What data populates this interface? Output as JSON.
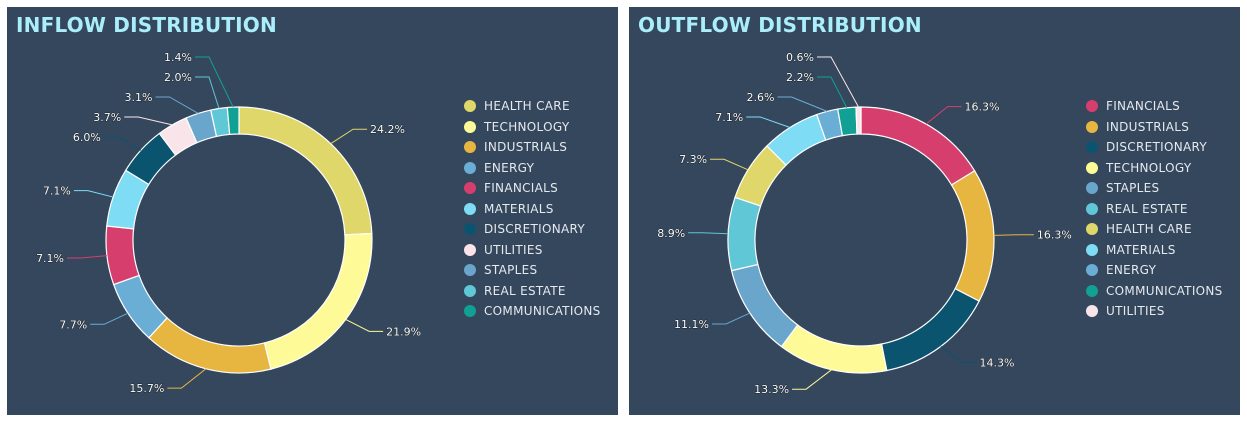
{
  "chart_data": [
    {
      "type": "pie",
      "title": "INFLOW DISTRIBUTION",
      "donut": true,
      "categories": [
        "HEALTH CARE",
        "TECHNOLOGY",
        "INDUSTRIALS",
        "ENERGY",
        "FINANCIALS",
        "MATERIALS",
        "DISCRETIONARY",
        "UTILITIES",
        "STAPLES",
        "REAL ESTATE",
        "COMMUNICATIONS"
      ],
      "values": [
        24.2,
        21.9,
        15.7,
        7.7,
        7.1,
        7.1,
        6.0,
        3.7,
        3.1,
        2.0,
        1.4
      ],
      "labels": [
        "24.2%",
        "21.9%",
        "15.7%",
        "7.7%",
        "7.1%",
        "7.1%",
        "6.0%",
        "3.7%",
        "3.1%",
        "2.0%",
        "1.4%"
      ],
      "colors": [
        "#e0d76a",
        "#fdfa97",
        "#e6b640",
        "#6aaed6",
        "#d63f6d",
        "#7fdcf5",
        "#0b5470",
        "#f9e4ea",
        "#6aa6cc",
        "#5fc7d6",
        "#11a094"
      ],
      "legend": "right"
    },
    {
      "type": "pie",
      "title": "OUTFLOW DISTRIBUTION",
      "donut": true,
      "categories": [
        "FINANCIALS",
        "INDUSTRIALS",
        "DISCRETIONARY",
        "TECHNOLOGY",
        "STAPLES",
        "REAL ESTATE",
        "HEALTH CARE",
        "MATERIALS",
        "ENERGY",
        "COMMUNICATIONS",
        "UTILITIES"
      ],
      "values": [
        16.3,
        16.3,
        14.3,
        13.3,
        11.1,
        8.9,
        7.3,
        7.1,
        2.6,
        2.2,
        0.6
      ],
      "labels": [
        "16.3%",
        "16.3%",
        "14.3%",
        "13.3%",
        "11.1%",
        "8.9%",
        "7.3%",
        "7.1%",
        "2.6%",
        "2.2%",
        "0.6%"
      ],
      "colors": [
        "#d63f6d",
        "#e6b640",
        "#0b5470",
        "#fdfa97",
        "#6aa6cc",
        "#5fc7d6",
        "#e0d76a",
        "#7fdcf5",
        "#6aaed6",
        "#11a094",
        "#f9e4ea"
      ],
      "legend": "right"
    }
  ]
}
